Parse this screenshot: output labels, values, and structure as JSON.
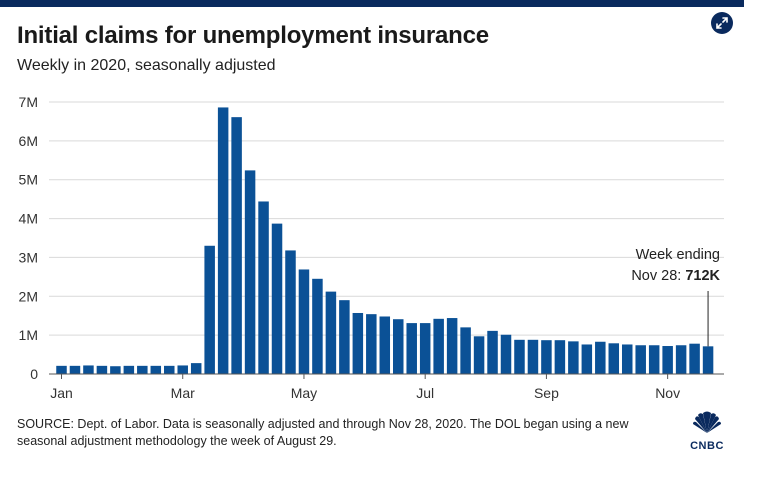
{
  "header": {
    "title": "Initial claims for unemployment insurance",
    "subtitle": "Weekly in 2020, seasonally adjusted"
  },
  "annotation": {
    "line1": "Week ending",
    "line2_prefix": "Nov 28: ",
    "line2_value": "712K"
  },
  "footer": {
    "source": "SOURCE: Dept. of Labor. Data is seasonally adjusted and through Nov 28, 2020. The DOL began using a new seasonal adjustment methodology the week of August 29.",
    "logo_text": "CNBC"
  },
  "icons": {
    "expand": "expand-arrows-icon",
    "logo": "peacock-icon"
  },
  "colors": {
    "bar": "#0b5196",
    "brand": "#0a2a5e",
    "grid": "#d9d9d9"
  },
  "chart_data": {
    "type": "bar",
    "title": "Initial claims for unemployment insurance",
    "subtitle": "Weekly in 2020, seasonally adjusted",
    "ylim": [
      0,
      7000000
    ],
    "yticks": [
      0,
      1000000,
      2000000,
      3000000,
      4000000,
      5000000,
      6000000,
      7000000
    ],
    "ytick_labels": [
      "0",
      "1M",
      "2M",
      "3M",
      "4M",
      "5M",
      "6M",
      "7M"
    ],
    "xtick_labels": [
      "Jan",
      "Mar",
      "May",
      "Jul",
      "Sep",
      "Nov"
    ],
    "xtick_week_index": [
      0,
      9,
      18,
      27,
      36,
      45
    ],
    "grid": "horizontal",
    "values": [
      210000,
      210000,
      220000,
      210000,
      200000,
      210000,
      210000,
      210000,
      210000,
      220000,
      280000,
      3300000,
      6860000,
      6610000,
      5240000,
      4440000,
      3870000,
      3180000,
      2690000,
      2450000,
      2120000,
      1900000,
      1570000,
      1540000,
      1480000,
      1410000,
      1310000,
      1310000,
      1420000,
      1440000,
      1200000,
      970000,
      1110000,
      1010000,
      880000,
      880000,
      870000,
      870000,
      840000,
      760000,
      830000,
      790000,
      760000,
      740000,
      740000,
      720000,
      740000,
      780000,
      712000
    ]
  }
}
